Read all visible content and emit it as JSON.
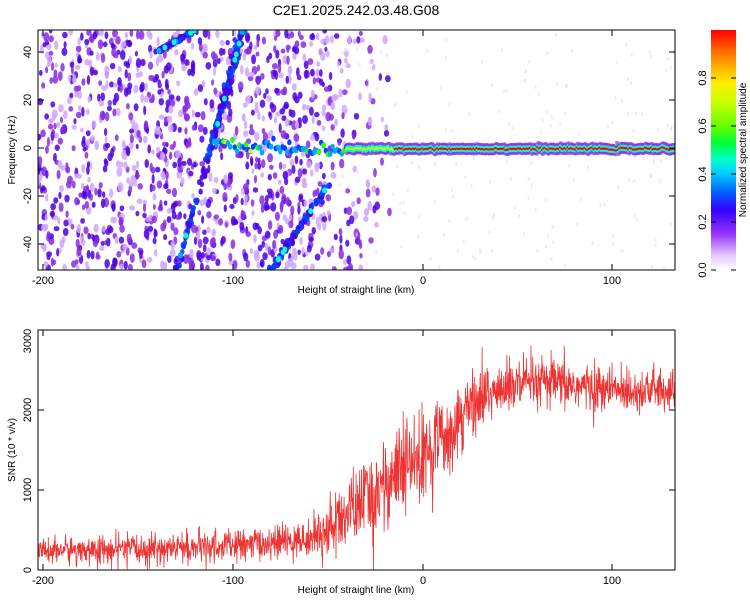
{
  "chart_data": [
    {
      "type": "heatmap",
      "title": "C2E1.2025.242.03.48.G08",
      "xlabel": "Height of straight line (km)",
      "ylabel": "Frequency (Hz)",
      "xlim": [
        -203,
        133
      ],
      "ylim": [
        -50,
        49
      ],
      "xticks": [
        -200,
        -100,
        0,
        100
      ],
      "yticks": [
        -40,
        -20,
        0,
        20,
        40
      ],
      "colorbar": {
        "label": "Normalized spectral amplitude",
        "range": [
          0.0,
          1.0
        ],
        "ticks": [
          "0.0",
          "0.2",
          "0.4",
          "0.6",
          "0.8"
        ]
      },
      "features": {
        "direct_signal_frequency": 0,
        "direct_signal_onset_km": -40,
        "noise_extent_km": [
          -203,
          -45
        ],
        "descending_streaks": [
          {
            "x": [
              -130,
              -95
            ],
            "y": [
              -50,
              49
            ]
          },
          {
            "x": [
              -80,
              -50
            ],
            "y": [
              -50,
              -15
            ]
          },
          {
            "x": [
              -140,
              -120
            ],
            "y": [
              40,
              49
            ]
          },
          {
            "x": [
              -110,
              -95
            ],
            "y": [
              5,
              49
            ]
          }
        ]
      }
    },
    {
      "type": "line",
      "xlabel": "Height of straight line (km)",
      "ylabel": "SNR (10 * v/v)",
      "xlim": [
        -203,
        133
      ],
      "ylim": [
        0,
        3000
      ],
      "xticks": [
        -200,
        -100,
        0,
        100
      ],
      "yticks": [
        0,
        1000,
        2000,
        3000
      ],
      "series": [
        {
          "name": "SNR",
          "color": "#ee3333",
          "trend_x": [
            -203,
            -150,
            -100,
            -60,
            -45,
            -30,
            -20,
            -10,
            0,
            10,
            20,
            30,
            40,
            60,
            80,
            100,
            120,
            133
          ],
          "trend_y": [
            250,
            260,
            300,
            380,
            600,
            900,
            1100,
            1250,
            1400,
            1650,
            1950,
            2150,
            2250,
            2350,
            2300,
            2250,
            2250,
            2250
          ],
          "noise_sigma_x": [
            -203,
            -60,
            -45,
            -10,
            20,
            40,
            133
          ],
          "noise_sigma_y": [
            120,
            150,
            300,
            450,
            350,
            250,
            180
          ]
        }
      ]
    }
  ]
}
